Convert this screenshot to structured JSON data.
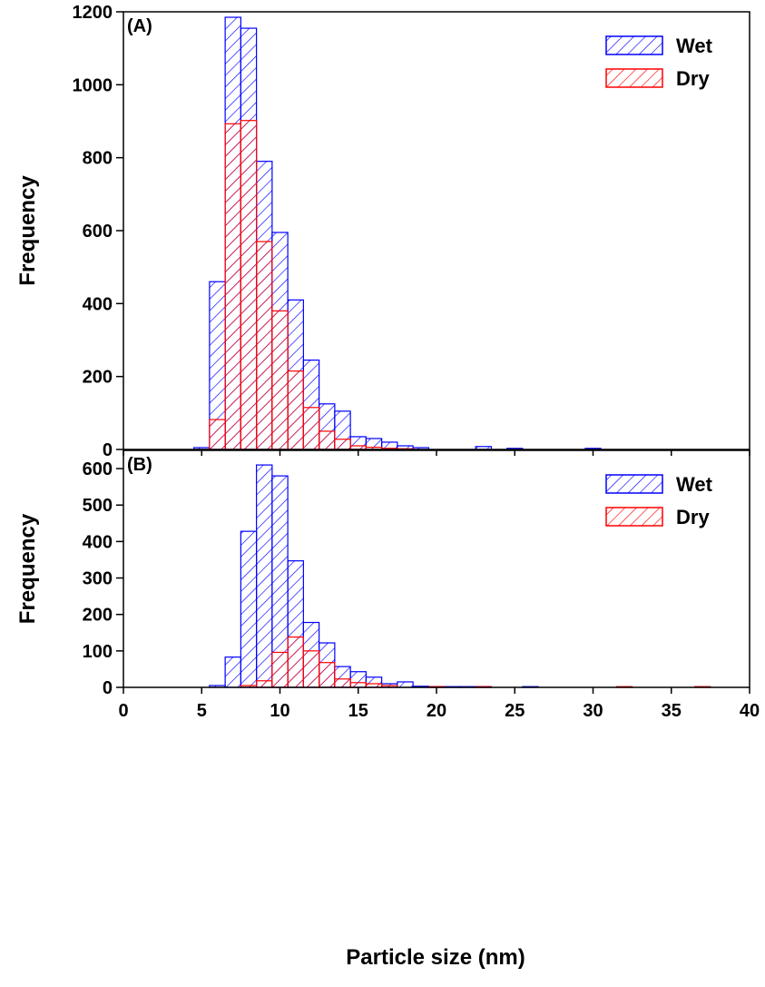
{
  "colors": {
    "wet": "#0000ff",
    "dry": "#ff0000",
    "axis": "#000000"
  },
  "xlabel": "Particle size (nm)",
  "chart_data": [
    {
      "type": "bar",
      "panel_label": "(A)",
      "ylabel": "Frequency",
      "xlim": [
        0,
        40
      ],
      "ylim": [
        0,
        1200
      ],
      "x_ticks": [],
      "y_ticks": [
        0,
        200,
        400,
        600,
        800,
        1000,
        1200
      ],
      "bin_width": 1,
      "legend": {
        "placement": "top-right",
        "entries": [
          "Wet",
          "Dry"
        ]
      },
      "series": [
        {
          "name": "Wet",
          "color": "#0000ff",
          "bin_centers": [
            5,
            6,
            7,
            8,
            9,
            10,
            11,
            12,
            13,
            14,
            15,
            16,
            17,
            18,
            19,
            23,
            25,
            30
          ],
          "values": [
            5,
            460,
            1185,
            1155,
            790,
            595,
            410,
            245,
            125,
            105,
            35,
            30,
            20,
            10,
            5,
            8,
            3,
            3
          ]
        },
        {
          "name": "Dry",
          "color": "#ff0000",
          "bin_centers": [
            6,
            7,
            8,
            9,
            10,
            11,
            12,
            13,
            14,
            15,
            16,
            17,
            18
          ],
          "values": [
            82,
            893,
            902,
            570,
            380,
            215,
            115,
            50,
            28,
            10,
            6,
            3,
            2
          ]
        }
      ]
    },
    {
      "type": "bar",
      "panel_label": "(B)",
      "ylabel": "Frequency",
      "xlim": [
        0,
        40
      ],
      "ylim": [
        0,
        650
      ],
      "x_ticks": [
        0,
        5,
        10,
        15,
        20,
        25,
        30,
        35,
        40
      ],
      "y_ticks": [
        0,
        100,
        200,
        300,
        400,
        500,
        600
      ],
      "bin_width": 1,
      "legend": {
        "placement": "top-right",
        "entries": [
          "Wet",
          "Dry"
        ]
      },
      "series": [
        {
          "name": "Wet",
          "color": "#0000ff",
          "bin_centers": [
            6,
            7,
            8,
            9,
            10,
            11,
            12,
            13,
            14,
            15,
            16,
            17,
            18,
            19,
            20,
            21,
            22,
            23,
            26
          ],
          "values": [
            5,
            83,
            428,
            610,
            580,
            347,
            178,
            122,
            57,
            43,
            28,
            10,
            15,
            3,
            2,
            2,
            2,
            2,
            2
          ]
        },
        {
          "name": "Dry",
          "color": "#ff0000",
          "bin_centers": [
            8,
            9,
            10,
            11,
            12,
            13,
            14,
            15,
            16,
            17,
            20,
            23,
            32,
            37
          ],
          "values": [
            5,
            18,
            96,
            138,
            100,
            68,
            23,
            13,
            10,
            5,
            2,
            2,
            2,
            2
          ]
        }
      ]
    }
  ]
}
